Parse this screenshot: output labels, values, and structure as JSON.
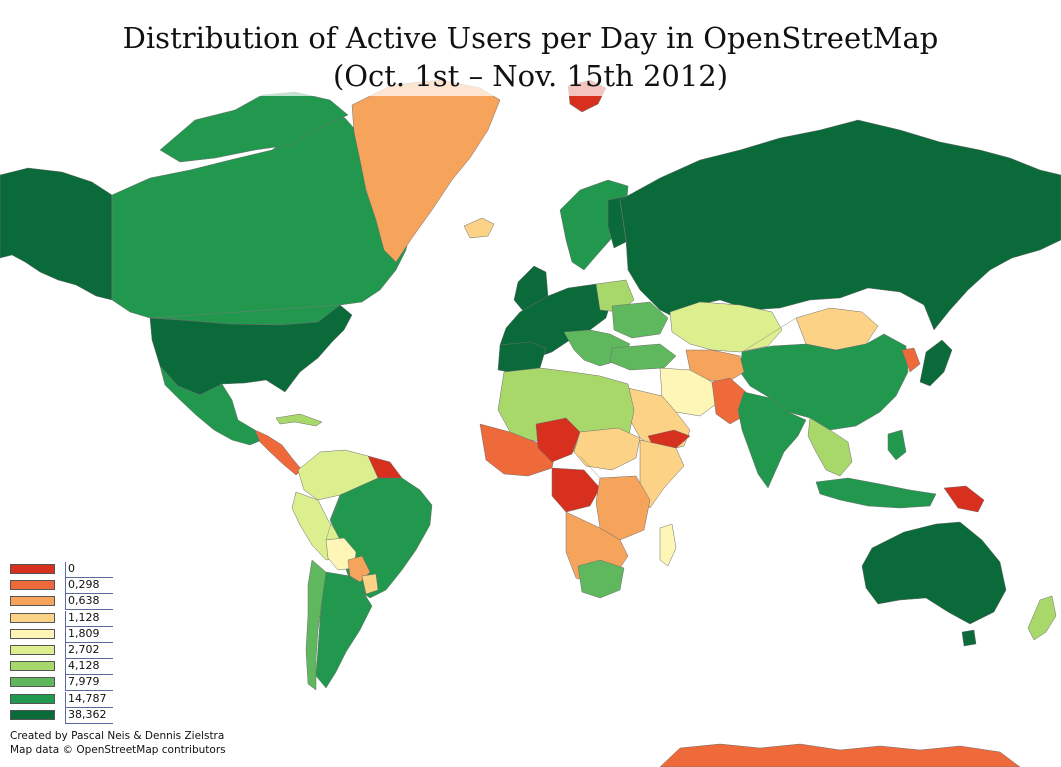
{
  "title": {
    "line1": "Distribution of Active Users per Day in OpenStreetMap",
    "line2": "(Oct. 1st – Nov. 15th 2012)"
  },
  "legend": {
    "items": [
      {
        "label": "0",
        "color": "#d7301f"
      },
      {
        "label": "0,298",
        "color": "#ee6a3a"
      },
      {
        "label": "0,638",
        "color": "#f6a45c"
      },
      {
        "label": "1,128",
        "color": "#fcd386"
      },
      {
        "label": "1,809",
        "color": "#fdf6b7"
      },
      {
        "label": "2,702",
        "color": "#dbef8f"
      },
      {
        "label": "4,128",
        "color": "#a9d86a"
      },
      {
        "label": "7,979",
        "color": "#5fb85d"
      },
      {
        "label": "14,787",
        "color": "#22974e"
      },
      {
        "label": "38,362",
        "color": "#0a6a39"
      }
    ]
  },
  "credits": {
    "line1": "Created by Pascal Neis & Dennis Zielstra",
    "line2": "Map data © OpenStreetMap contributors"
  }
}
